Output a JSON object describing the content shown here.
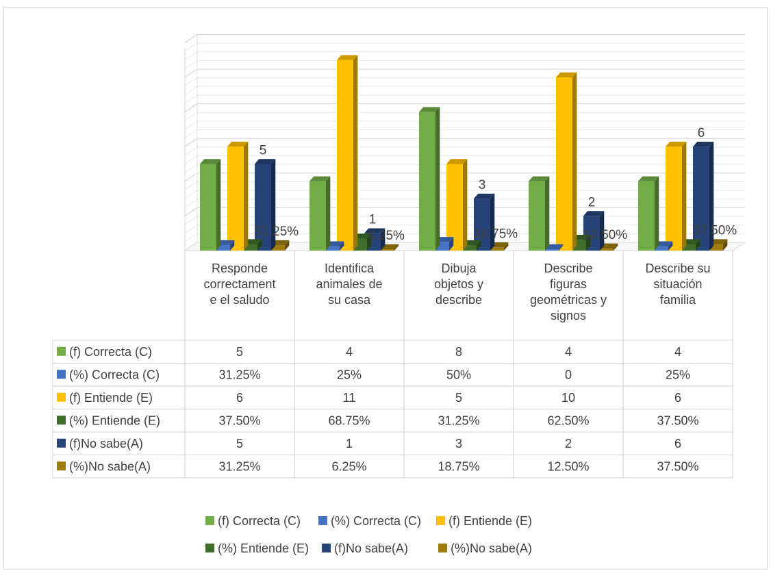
{
  "chart_data": {
    "type": "bar",
    "title": "",
    "xlabel": "",
    "ylabel": "",
    "ylim": [
      0,
      13
    ],
    "grid": true,
    "legend_position": "bottom",
    "categories": [
      [
        "Responde",
        "correctament",
        "e el saludo"
      ],
      [
        "Identifica",
        "animales de",
        "su casa"
      ],
      [
        "Dibuja",
        "objetos y",
        "describe"
      ],
      [
        "Describe",
        "figuras",
        "geométricas y",
        "signos"
      ],
      [
        "Describe su",
        "situación",
        "familia"
      ]
    ],
    "series": [
      {
        "name": "(f) Correcta (C)",
        "color": "#70ad47",
        "values": [
          5,
          4,
          8,
          4,
          4
        ],
        "display": [
          "5",
          "4",
          "8",
          "4",
          "4"
        ]
      },
      {
        "name": "(%) Correcta (C)",
        "color": "#4472c4",
        "values": [
          0.3125,
          0.25,
          0.5,
          0,
          0.25
        ],
        "display": [
          "31.25%",
          "25%",
          "50%",
          "0",
          "25%"
        ]
      },
      {
        "name": "(f) Entiende (E)",
        "color": "#ffc000",
        "values": [
          6,
          11,
          5,
          10,
          6
        ],
        "display": [
          "6",
          "11",
          "5",
          "10",
          "6"
        ]
      },
      {
        "name": "(%) Entiende (E)",
        "color": "#3d6e2a",
        "values": [
          0.375,
          0.6875,
          0.3125,
          0.625,
          0.375
        ],
        "display": [
          "37.50%",
          "68.75%",
          "31.25%",
          "62.50%",
          "37.50%"
        ]
      },
      {
        "name": "(f)No sabe(A)",
        "color": "#264478",
        "values": [
          5,
          1,
          3,
          2,
          6
        ],
        "display": [
          "5",
          "1",
          "3",
          "2",
          "6"
        ]
      },
      {
        "name": "(%)No sabe(A)",
        "color": "#9e7c0c",
        "values": [
          0.3125,
          0.0625,
          0.1875,
          0.125,
          0.375
        ],
        "display": [
          "31.25%",
          "6.25%",
          "18.75%",
          "12.50%",
          "37.50%"
        ]
      }
    ],
    "data_labels": [
      {
        "series": 4,
        "category": 0,
        "text": "5"
      },
      {
        "series": 5,
        "category": 0,
        "text": "31.25%"
      },
      {
        "series": 4,
        "category": 1,
        "text": "1"
      },
      {
        "series": 5,
        "category": 1,
        "text": "6.25%"
      },
      {
        "series": 4,
        "category": 2,
        "text": "3"
      },
      {
        "series": 5,
        "category": 2,
        "text": "18.75%"
      },
      {
        "series": 4,
        "category": 3,
        "text": "2"
      },
      {
        "series": 5,
        "category": 3,
        "text": "12.50%"
      },
      {
        "series": 4,
        "category": 4,
        "text": "6"
      },
      {
        "series": 5,
        "category": 4,
        "text": "37.50%"
      }
    ]
  }
}
